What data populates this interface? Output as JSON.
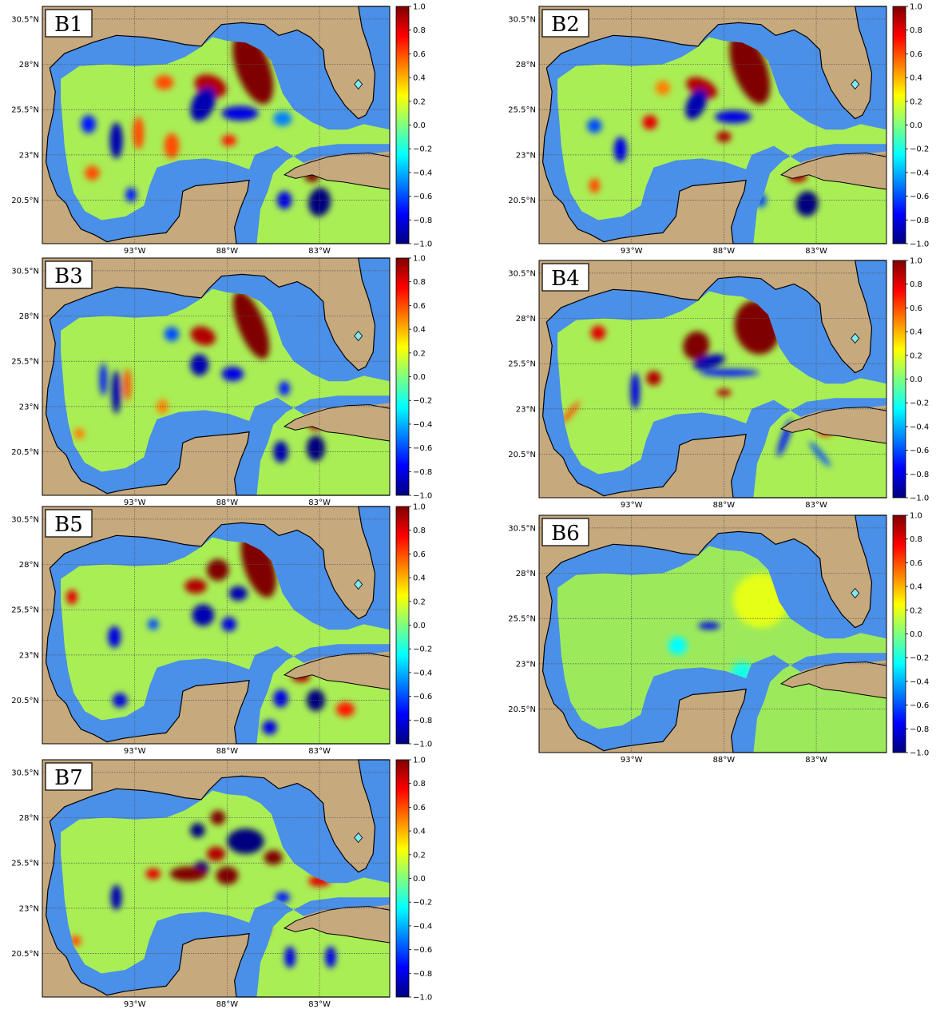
{
  "figure": {
    "panels": [
      {
        "id": "B1",
        "blobs": [
          {
            "lon": -86.6,
            "lat": 27.8,
            "v": 1.0,
            "rx": 0.9,
            "ry": 2.1,
            "rot": -20
          },
          {
            "lon": -88.9,
            "lat": 26.8,
            "v": 0.9,
            "rx": 0.9,
            "ry": 0.6,
            "rot": 20
          },
          {
            "lon": -89.3,
            "lat": 25.8,
            "v": -0.9,
            "rx": 0.6,
            "ry": 1.0,
            "rot": 25
          },
          {
            "lon": -87.3,
            "lat": 25.3,
            "v": -0.8,
            "rx": 1.0,
            "ry": 0.4,
            "rot": 0
          },
          {
            "lon": -94.0,
            "lat": 23.8,
            "v": -0.9,
            "rx": 0.35,
            "ry": 1.0,
            "rot": 0
          },
          {
            "lon": -95.5,
            "lat": 24.7,
            "v": -0.7,
            "rx": 0.4,
            "ry": 0.5,
            "rot": 0
          },
          {
            "lon": -92.8,
            "lat": 24.2,
            "v": 0.6,
            "rx": 0.3,
            "ry": 0.9,
            "rot": 0
          },
          {
            "lon": -91.0,
            "lat": 23.5,
            "v": 0.6,
            "rx": 0.4,
            "ry": 0.7,
            "rot": 0
          },
          {
            "lon": -83.0,
            "lat": 20.4,
            "v": -1.0,
            "rx": 0.6,
            "ry": 0.8,
            "rot": 10
          },
          {
            "lon": -84.9,
            "lat": 20.5,
            "v": -0.8,
            "rx": 0.4,
            "ry": 0.5,
            "rot": 0
          },
          {
            "lon": -83.4,
            "lat": 21.8,
            "v": 1.0,
            "rx": 0.4,
            "ry": 0.3,
            "rot": 0
          },
          {
            "lon": -87.9,
            "lat": 23.8,
            "v": 0.7,
            "rx": 0.4,
            "ry": 0.3,
            "rot": 0
          },
          {
            "lon": -95.3,
            "lat": 22.0,
            "v": 0.6,
            "rx": 0.4,
            "ry": 0.4,
            "rot": 0
          },
          {
            "lon": -93.2,
            "lat": 20.8,
            "v": -0.7,
            "rx": 0.3,
            "ry": 0.4,
            "rot": 0
          },
          {
            "lon": -91.4,
            "lat": 27.0,
            "v": 0.6,
            "rx": 0.5,
            "ry": 0.4,
            "rot": 0
          },
          {
            "lon": -85.0,
            "lat": 25.0,
            "v": -0.5,
            "rx": 0.5,
            "ry": 0.4,
            "rot": 0
          }
        ]
      },
      {
        "id": "B2",
        "blobs": [
          {
            "lon": -86.6,
            "lat": 27.8,
            "v": 1.0,
            "rx": 0.9,
            "ry": 2.1,
            "rot": -20
          },
          {
            "lon": -89.2,
            "lat": 26.7,
            "v": 0.9,
            "rx": 0.9,
            "ry": 0.5,
            "rot": 25
          },
          {
            "lon": -89.5,
            "lat": 25.8,
            "v": -0.9,
            "rx": 0.5,
            "ry": 0.9,
            "rot": 25
          },
          {
            "lon": -87.5,
            "lat": 25.1,
            "v": -0.8,
            "rx": 1.0,
            "ry": 0.35,
            "rot": 0
          },
          {
            "lon": -93.6,
            "lat": 23.3,
            "v": -0.8,
            "rx": 0.35,
            "ry": 0.7,
            "rot": 0
          },
          {
            "lon": -92.0,
            "lat": 24.8,
            "v": 0.8,
            "rx": 0.4,
            "ry": 0.4,
            "rot": 0
          },
          {
            "lon": -83.5,
            "lat": 20.3,
            "v": -1.0,
            "rx": 0.6,
            "ry": 0.7,
            "rot": 10
          },
          {
            "lon": -84.0,
            "lat": 21.8,
            "v": 0.9,
            "rx": 0.5,
            "ry": 0.3,
            "rot": 0
          },
          {
            "lon": -88.0,
            "lat": 24.0,
            "v": 0.9,
            "rx": 0.4,
            "ry": 0.3,
            "rot": 0
          },
          {
            "lon": -95.0,
            "lat": 24.6,
            "v": -0.6,
            "rx": 0.4,
            "ry": 0.4,
            "rot": 0
          },
          {
            "lon": -95.0,
            "lat": 21.3,
            "v": 0.6,
            "rx": 0.3,
            "ry": 0.4,
            "rot": 0
          },
          {
            "lon": -86.0,
            "lat": 20.5,
            "v": -0.6,
            "rx": 0.3,
            "ry": 0.4,
            "rot": 0
          },
          {
            "lon": -91.3,
            "lat": 26.7,
            "v": 0.5,
            "rx": 0.4,
            "ry": 0.4,
            "rot": 0
          }
        ]
      },
      {
        "id": "B3",
        "blobs": [
          {
            "lon": -86.7,
            "lat": 27.5,
            "v": 1.0,
            "rx": 0.7,
            "ry": 2.0,
            "rot": -22
          },
          {
            "lon": -89.3,
            "lat": 26.9,
            "v": 0.9,
            "rx": 0.7,
            "ry": 0.5,
            "rot": 20
          },
          {
            "lon": -89.5,
            "lat": 25.3,
            "v": -0.9,
            "rx": 0.5,
            "ry": 0.6,
            "rot": 0
          },
          {
            "lon": -87.7,
            "lat": 24.8,
            "v": -0.8,
            "rx": 0.6,
            "ry": 0.4,
            "rot": 0
          },
          {
            "lon": -94.0,
            "lat": 23.8,
            "v": -0.9,
            "rx": 0.25,
            "ry": 1.2,
            "rot": 0
          },
          {
            "lon": -94.7,
            "lat": 24.5,
            "v": -0.7,
            "rx": 0.2,
            "ry": 0.9,
            "rot": 0
          },
          {
            "lon": -93.4,
            "lat": 24.2,
            "v": 0.6,
            "rx": 0.2,
            "ry": 0.9,
            "rot": 0
          },
          {
            "lon": -83.2,
            "lat": 20.7,
            "v": -1.0,
            "rx": 0.5,
            "ry": 0.7,
            "rot": 0
          },
          {
            "lon": -85.1,
            "lat": 20.5,
            "v": -0.9,
            "rx": 0.4,
            "ry": 0.6,
            "rot": 0
          },
          {
            "lon": -83.2,
            "lat": 22.0,
            "v": 0.9,
            "rx": 0.4,
            "ry": 0.3,
            "rot": 0
          },
          {
            "lon": -84.9,
            "lat": 24.0,
            "v": -0.7,
            "rx": 0.3,
            "ry": 0.4,
            "rot": 0
          },
          {
            "lon": -91.0,
            "lat": 27.0,
            "v": -0.6,
            "rx": 0.4,
            "ry": 0.4,
            "rot": 0
          },
          {
            "lon": -91.5,
            "lat": 23.0,
            "v": 0.5,
            "rx": 0.3,
            "ry": 0.4,
            "rot": 0
          },
          {
            "lon": -96.0,
            "lat": 21.5,
            "v": 0.5,
            "rx": 0.3,
            "ry": 0.3,
            "rot": 0
          }
        ]
      },
      {
        "id": "B4",
        "blobs": [
          {
            "lon": -86.2,
            "lat": 27.5,
            "v": 1.0,
            "rx": 1.2,
            "ry": 1.5,
            "rot": -15
          },
          {
            "lon": -89.5,
            "lat": 26.5,
            "v": 1.0,
            "rx": 0.7,
            "ry": 0.8,
            "rot": 20
          },
          {
            "lon": -88.8,
            "lat": 25.6,
            "v": -0.9,
            "rx": 0.9,
            "ry": 0.35,
            "rot": -15
          },
          {
            "lon": -87.7,
            "lat": 25.0,
            "v": -0.7,
            "rx": 1.6,
            "ry": 0.2,
            "rot": 0
          },
          {
            "lon": -88.0,
            "lat": 23.9,
            "v": 0.9,
            "rx": 0.4,
            "ry": 0.2,
            "rot": 0
          },
          {
            "lon": -91.8,
            "lat": 24.7,
            "v": 0.9,
            "rx": 0.4,
            "ry": 0.4,
            "rot": 0
          },
          {
            "lon": -92.8,
            "lat": 24.0,
            "v": -0.8,
            "rx": 0.25,
            "ry": 1.0,
            "rot": 0
          },
          {
            "lon": -94.8,
            "lat": 27.2,
            "v": 0.8,
            "rx": 0.4,
            "ry": 0.4,
            "rot": 0
          },
          {
            "lon": -84.7,
            "lat": 21.4,
            "v": -0.7,
            "rx": 0.2,
            "ry": 1.1,
            "rot": 20
          },
          {
            "lon": -82.8,
            "lat": 20.5,
            "v": -0.6,
            "rx": 0.15,
            "ry": 0.9,
            "rot": -40
          },
          {
            "lon": -82.5,
            "lat": 21.8,
            "v": 0.7,
            "rx": 0.4,
            "ry": 0.3,
            "rot": 0
          },
          {
            "lon": -96.3,
            "lat": 22.8,
            "v": 0.6,
            "rx": 0.15,
            "ry": 0.8,
            "rot": 40
          }
        ]
      },
      {
        "id": "B5",
        "blobs": [
          {
            "lon": -86.3,
            "lat": 28.0,
            "v": 1.0,
            "rx": 0.8,
            "ry": 1.9,
            "rot": -18
          },
          {
            "lon": -88.5,
            "lat": 27.7,
            "v": 1.0,
            "rx": 0.6,
            "ry": 0.6,
            "rot": 0
          },
          {
            "lon": -89.7,
            "lat": 26.8,
            "v": 0.9,
            "rx": 0.6,
            "ry": 0.4,
            "rot": 0
          },
          {
            "lon": -87.4,
            "lat": 26.4,
            "v": -0.9,
            "rx": 0.5,
            "ry": 0.4,
            "rot": 0
          },
          {
            "lon": -89.3,
            "lat": 25.2,
            "v": -0.9,
            "rx": 0.6,
            "ry": 0.6,
            "rot": 0
          },
          {
            "lon": -87.9,
            "lat": 24.7,
            "v": -0.8,
            "rx": 0.4,
            "ry": 0.4,
            "rot": 0
          },
          {
            "lon": -83.2,
            "lat": 20.5,
            "v": -1.0,
            "rx": 0.5,
            "ry": 0.6,
            "rot": 0
          },
          {
            "lon": -84.0,
            "lat": 21.8,
            "v": 0.9,
            "rx": 0.5,
            "ry": 0.3,
            "rot": 0
          },
          {
            "lon": -85.1,
            "lat": 20.6,
            "v": -0.8,
            "rx": 0.4,
            "ry": 0.5,
            "rot": 0
          },
          {
            "lon": -81.6,
            "lat": 20.0,
            "v": 0.7,
            "rx": 0.5,
            "ry": 0.4,
            "rot": 0
          },
          {
            "lon": -94.1,
            "lat": 24.0,
            "v": -0.8,
            "rx": 0.35,
            "ry": 0.6,
            "rot": 0
          },
          {
            "lon": -96.4,
            "lat": 26.2,
            "v": 0.8,
            "rx": 0.3,
            "ry": 0.4,
            "rot": 0
          },
          {
            "lon": -93.8,
            "lat": 20.5,
            "v": -0.8,
            "rx": 0.4,
            "ry": 0.4,
            "rot": 0
          },
          {
            "lon": -92.0,
            "lat": 24.7,
            "v": -0.6,
            "rx": 0.3,
            "ry": 0.3,
            "rot": 0
          },
          {
            "lon": -85.7,
            "lat": 19.0,
            "v": -0.8,
            "rx": 0.4,
            "ry": 0.4,
            "rot": 0
          }
        ]
      },
      {
        "id": "B6",
        "blobs": [
          {
            "lon": -88.8,
            "lat": 25.1,
            "v": -0.8,
            "rx": 0.6,
            "ry": 0.2,
            "rot": 0
          },
          {
            "lon": -86.0,
            "lat": 26.5,
            "v": 0.2,
            "rx": 1.5,
            "ry": 1.5,
            "rot": 0
          },
          {
            "lon": -90.5,
            "lat": 24.0,
            "v": -0.25,
            "rx": 0.5,
            "ry": 0.5,
            "rot": 0
          },
          {
            "lon": -87.0,
            "lat": 22.5,
            "v": -0.2,
            "rx": 0.6,
            "ry": 0.6,
            "rot": 0
          }
        ]
      },
      {
        "id": "B7",
        "blobs": [
          {
            "lon": -87.0,
            "lat": 26.7,
            "v": -1.0,
            "rx": 1.0,
            "ry": 0.7,
            "rot": 0
          },
          {
            "lon": -88.5,
            "lat": 28.0,
            "v": 1.0,
            "rx": 0.4,
            "ry": 0.4,
            "rot": 0
          },
          {
            "lon": -89.6,
            "lat": 27.3,
            "v": -1.0,
            "rx": 0.4,
            "ry": 0.4,
            "rot": 0
          },
          {
            "lon": -89.4,
            "lat": 25.2,
            "v": -1.0,
            "rx": 0.4,
            "ry": 0.4,
            "rot": 0
          },
          {
            "lon": -90.1,
            "lat": 24.9,
            "v": 1.0,
            "rx": 1.0,
            "ry": 0.4,
            "rot": 0
          },
          {
            "lon": -88.0,
            "lat": 24.8,
            "v": 1.0,
            "rx": 0.6,
            "ry": 0.5,
            "rot": 0
          },
          {
            "lon": -85.5,
            "lat": 25.8,
            "v": 1.0,
            "rx": 0.5,
            "ry": 0.4,
            "rot": 0
          },
          {
            "lon": -88.6,
            "lat": 26.0,
            "v": 0.9,
            "rx": 0.5,
            "ry": 0.4,
            "rot": 0
          },
          {
            "lon": -94.0,
            "lat": 23.6,
            "v": -0.9,
            "rx": 0.3,
            "ry": 0.7,
            "rot": 0
          },
          {
            "lon": -87.3,
            "lat": 19.5,
            "v": 1.0,
            "rx": 0.35,
            "ry": 0.8,
            "rot": 0
          },
          {
            "lon": -86.0,
            "lat": 22.0,
            "v": 0.9,
            "rx": 0.3,
            "ry": 0.6,
            "rot": 0
          },
          {
            "lon": -84.6,
            "lat": 20.3,
            "v": -0.8,
            "rx": 0.3,
            "ry": 0.6,
            "rot": 0
          },
          {
            "lon": -82.4,
            "lat": 20.3,
            "v": -0.8,
            "rx": 0.3,
            "ry": 0.6,
            "rot": 0
          },
          {
            "lon": -83.0,
            "lat": 24.5,
            "v": 0.8,
            "rx": 0.6,
            "ry": 0.3,
            "rot": 0
          },
          {
            "lon": -92.0,
            "lat": 24.9,
            "v": 0.8,
            "rx": 0.4,
            "ry": 0.3,
            "rot": 0
          },
          {
            "lon": -96.2,
            "lat": 21.2,
            "v": 0.6,
            "rx": 0.3,
            "ry": 0.3,
            "rot": 0
          },
          {
            "lon": -85.0,
            "lat": 23.6,
            "v": -0.7,
            "rx": 0.4,
            "ry": 0.3,
            "rot": 0
          }
        ]
      }
    ],
    "lat_ticks": [
      {
        "value": 30.5,
        "label": "30.5°N"
      },
      {
        "value": 28,
        "label": "28°N"
      },
      {
        "value": 25.5,
        "label": "25.5°N"
      },
      {
        "value": 23,
        "label": "23°N"
      },
      {
        "value": 20.5,
        "label": "20.5°N"
      }
    ],
    "lon_ticks": [
      {
        "value": -93,
        "label": "93°W"
      },
      {
        "value": -88,
        "label": "88°W"
      },
      {
        "value": -83,
        "label": "83°W"
      }
    ],
    "colorbar": {
      "min": -1.0,
      "max": 1.0,
      "ticks": [
        {
          "value": 1.0,
          "label": "1.0"
        },
        {
          "value": 0.8,
          "label": "0.8"
        },
        {
          "value": 0.6,
          "label": "0.6"
        },
        {
          "value": 0.4,
          "label": "0.4"
        },
        {
          "value": 0.2,
          "label": "0.2"
        },
        {
          "value": 0.0,
          "label": "0.0"
        },
        {
          "value": -0.2,
          "label": "−0.2"
        },
        {
          "value": -0.4,
          "label": "−0.4"
        },
        {
          "value": -0.6,
          "label": "−0.6"
        },
        {
          "value": -0.8,
          "label": "−0.8"
        },
        {
          "value": -1.0,
          "label": "−1.0"
        }
      ],
      "colors": [
        "#00007f",
        "#0000ff",
        "#007fff",
        "#00ffff",
        "#7fff7f",
        "#ffff00",
        "#ff7f00",
        "#ff0000",
        "#7f0000"
      ]
    },
    "colors": {
      "land": "#c7a97e",
      "shelf": "#4a8fe8",
      "coast": "#000000",
      "grid": "#555555",
      "lake": "#80e8f0"
    }
  }
}
